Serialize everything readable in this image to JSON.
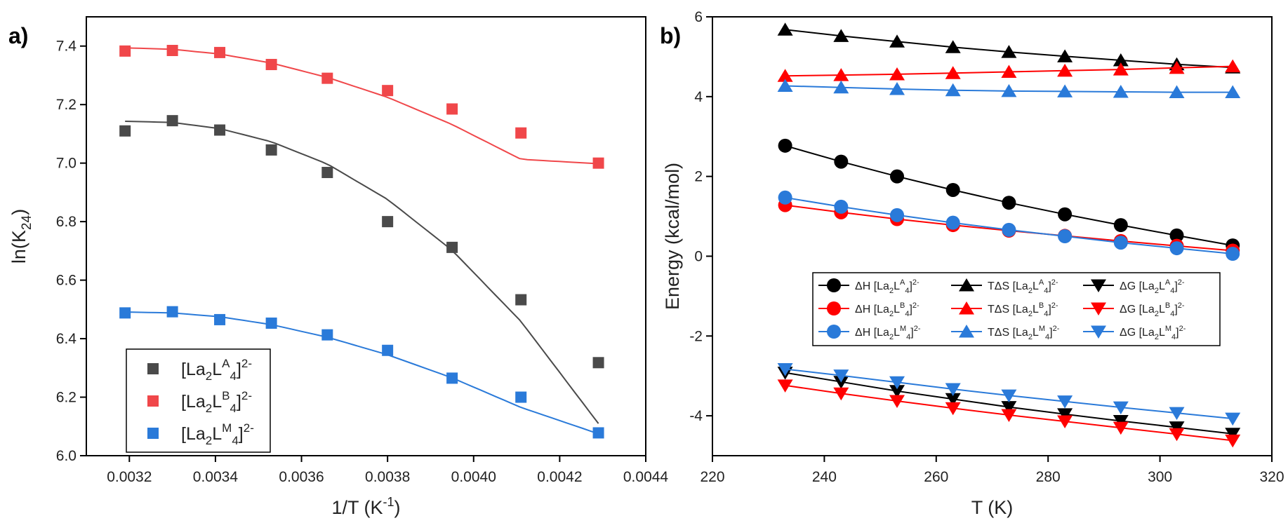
{
  "chart_data": [
    {
      "type": "scatter",
      "panel_label": "a)",
      "xlabel": "1/T (K",
      "xlabel_sup": "-1",
      "xlabel_end": ")",
      "ylabel": "ln(K",
      "ylabel_sub": "24",
      "ylabel_end": ")",
      "xlim": [
        0.0031,
        0.0044
      ],
      "ylim": [
        6.0,
        7.5
      ],
      "x_ticks": [
        "0.0032",
        "0.0034",
        "0.0036",
        "0.0038",
        "0.0040",
        "0.0042",
        "0.0044"
      ],
      "y_ticks": [
        "6.0",
        "6.2",
        "6.4",
        "6.6",
        "6.8",
        "7.0",
        "7.2",
        "7.4"
      ],
      "grid": false,
      "legend_position": "bottom-left",
      "x": [
        0.00319,
        0.0033,
        0.00341,
        0.00353,
        0.00366,
        0.0038,
        0.00395,
        0.00411,
        0.00429
      ],
      "series": [
        {
          "legend": {
            "a": "[La",
            "s1": "2",
            "b": "L",
            "s2": "A",
            "c": "",
            "s3": "4",
            "d": "]",
            "s4": "2-"
          },
          "color": "#4a4a4a",
          "line_color": "#4a4a4a",
          "marker": "square",
          "values": [
            7.11,
            7.145,
            7.113,
            7.045,
            6.968,
            6.8,
            6.712,
            6.533,
            6.318
          ],
          "fit": [
            7.143,
            7.139,
            7.118,
            7.073,
            6.997,
            6.876,
            6.702,
            6.459,
            6.11
          ]
        },
        {
          "legend": {
            "a": "[La",
            "s1": "2",
            "b": "L",
            "s2": "B",
            "c": "",
            "s3": "4",
            "d": "]",
            "s4": "2-"
          },
          "color": "#f0474a",
          "line_color": "#f0474a",
          "marker": "square",
          "values": [
            7.383,
            7.385,
            7.378,
            7.337,
            7.29,
            7.248,
            7.185,
            7.103,
            7.0
          ],
          "fit": [
            7.394,
            7.389,
            7.373,
            7.342,
            7.293,
            7.225,
            7.132,
            7.013,
            6.998
          ]
        },
        {
          "legend": {
            "a": "[La",
            "s1": "2",
            "b": "L",
            "s2": "M",
            "c": "",
            "s3": "4",
            "d": "]",
            "s4": "2-"
          },
          "color": "#2a7ad9",
          "line_color": "#2a7ad9",
          "marker": "square",
          "values": [
            6.488,
            6.492,
            6.465,
            6.453,
            6.413,
            6.36,
            6.265,
            6.2,
            6.078
          ],
          "fit": [
            6.491,
            6.488,
            6.475,
            6.448,
            6.405,
            6.345,
            6.266,
            6.165,
            6.075
          ]
        }
      ]
    },
    {
      "type": "line",
      "panel_label": "b)",
      "xlabel": "T (K)",
      "ylabel": "Energy (kcal/mol)",
      "xlim": [
        220,
        320
      ],
      "ylim": [
        -5,
        6
      ],
      "x_ticks": [
        "220",
        "240",
        "260",
        "280",
        "300",
        "320"
      ],
      "y_ticks": [
        "-4",
        "-2",
        "0",
        "2",
        "4",
        "6"
      ],
      "grid": false,
      "legend_position": "center-right",
      "x": [
        233,
        243,
        253,
        263,
        273,
        283,
        293,
        303,
        313
      ],
      "series": [
        {
          "legend": {
            "a": "ΔH [La",
            "s1": "2",
            "b": "L",
            "s2": "A",
            "c": "",
            "s3": "4",
            "d": "]",
            "s4": "2-"
          },
          "color": "#000000",
          "marker": "circle",
          "values": [
            2.77,
            2.37,
            2.0,
            1.66,
            1.34,
            1.05,
            0.78,
            0.52,
            0.27
          ]
        },
        {
          "legend": {
            "a": "TΔS [La",
            "s1": "2",
            "b": "L",
            "s2": "A",
            "c": "",
            "s3": "4",
            "d": "]",
            "s4": "2-"
          },
          "color": "#000000",
          "marker": "triangle-up",
          "values": [
            5.68,
            5.52,
            5.38,
            5.24,
            5.12,
            5.01,
            4.91,
            4.81,
            4.73
          ]
        },
        {
          "legend": {
            "a": "ΔG [La",
            "s1": "2",
            "b": "L",
            "s2": "A",
            "c": "",
            "s3": "4",
            "d": "]",
            "s4": "2-"
          },
          "color": "#000000",
          "marker": "triangle-down",
          "values": [
            -2.92,
            -3.15,
            -3.38,
            -3.58,
            -3.78,
            -3.96,
            -4.13,
            -4.29,
            -4.45
          ]
        },
        {
          "legend": {
            "a": "ΔH [La",
            "s1": "2",
            "b": "L",
            "s2": "B",
            "c": "",
            "s3": "4",
            "d": "]",
            "s4": "2-"
          },
          "color": "#ff0000",
          "marker": "circle",
          "values": [
            1.28,
            1.1,
            0.93,
            0.78,
            0.64,
            0.51,
            0.38,
            0.26,
            0.14
          ]
        },
        {
          "legend": {
            "a": "TΔS [La",
            "s1": "2",
            "b": "L",
            "s2": "B",
            "c": "",
            "s3": "4",
            "d": "]",
            "s4": "2-"
          },
          "color": "#ff0000",
          "marker": "triangle-up",
          "values": [
            4.52,
            4.54,
            4.56,
            4.59,
            4.62,
            4.65,
            4.68,
            4.72,
            4.76
          ]
        },
        {
          "legend": {
            "a": "ΔG [La",
            "s1": "2",
            "b": "L",
            "s2": "B",
            "c": "",
            "s3": "4",
            "d": "]",
            "s4": "2-"
          },
          "color": "#ff0000",
          "marker": "triangle-down",
          "values": [
            -3.24,
            -3.44,
            -3.63,
            -3.81,
            -3.98,
            -4.14,
            -4.3,
            -4.46,
            -4.62
          ]
        },
        {
          "legend": {
            "a": "ΔH [La",
            "s1": "2",
            "b": "L",
            "s2": "M",
            "c": "",
            "s3": "4",
            "d": "]",
            "s4": "2-"
          },
          "color": "#2a7ad9",
          "marker": "circle",
          "values": [
            1.47,
            1.24,
            1.03,
            0.84,
            0.66,
            0.5,
            0.34,
            0.2,
            0.06
          ]
        },
        {
          "legend": {
            "a": "TΔS [La",
            "s1": "2",
            "b": "L",
            "s2": "M",
            "c": "",
            "s3": "4",
            "d": "]",
            "s4": "2-"
          },
          "color": "#2a7ad9",
          "marker": "triangle-up",
          "values": [
            4.27,
            4.23,
            4.19,
            4.16,
            4.14,
            4.13,
            4.12,
            4.11,
            4.11
          ]
        },
        {
          "legend": {
            "a": "ΔG [La",
            "s1": "2",
            "b": "L",
            "s2": "M",
            "c": "",
            "s3": "4",
            "d": "]",
            "s4": "2-"
          },
          "color": "#2a7ad9",
          "marker": "triangle-down",
          "values": [
            -2.83,
            -2.99,
            -3.16,
            -3.33,
            -3.49,
            -3.64,
            -3.79,
            -3.93,
            -4.07
          ]
        }
      ]
    }
  ]
}
